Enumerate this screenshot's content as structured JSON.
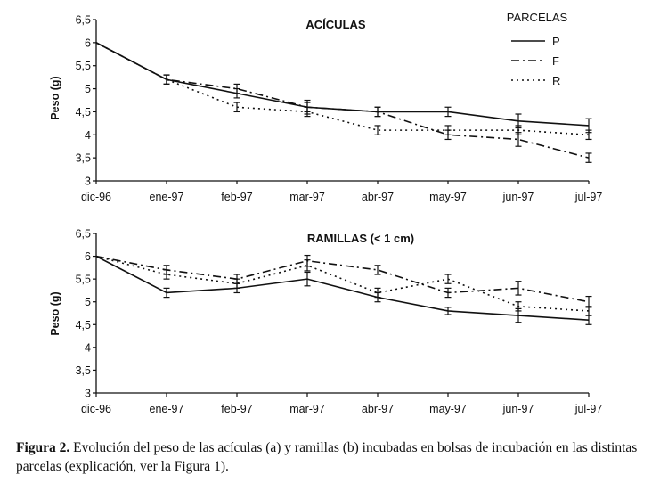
{
  "chart_data": [
    {
      "type": "line",
      "title": "ACÍCULAS",
      "ylabel": "Peso (g)",
      "xlabel": "",
      "categories": [
        "dic-96",
        "ene-97",
        "feb-97",
        "mar-97",
        "abr-97",
        "may-97",
        "jun-97",
        "jul-97"
      ],
      "ylim": [
        3,
        6.5
      ],
      "yticks": [
        "3",
        "3,5",
        "4",
        "4,5",
        "5",
        "5,5",
        "6",
        "6,5"
      ],
      "legend_title": "PARCELAS",
      "legend_position": "top-right",
      "series": [
        {
          "name": "P",
          "dash": "solid",
          "values": [
            6.0,
            5.2,
            4.9,
            4.6,
            4.5,
            4.5,
            4.3,
            4.2
          ],
          "errors": [
            0,
            0.1,
            0.1,
            0.15,
            0.1,
            0.1,
            0.15,
            0.15
          ]
        },
        {
          "name": "F",
          "dash": "dashdot",
          "values": [
            6.0,
            5.2,
            5.0,
            4.6,
            4.5,
            4.0,
            3.9,
            3.5
          ],
          "errors": [
            0,
            0.1,
            0.1,
            0.1,
            0.1,
            0.1,
            0.15,
            0.1
          ]
        },
        {
          "name": "R",
          "dash": "dotted",
          "values": [
            6.0,
            5.2,
            4.6,
            4.5,
            4.1,
            4.1,
            4.1,
            4.0
          ],
          "errors": [
            0,
            0.1,
            0.1,
            0.1,
            0.1,
            0.1,
            0.1,
            0.1
          ]
        }
      ]
    },
    {
      "type": "line",
      "title": "RAMILLAS (< 1 cm)",
      "ylabel": "Peso (g)",
      "xlabel": "",
      "categories": [
        "dic-96",
        "ene-97",
        "feb-97",
        "mar-97",
        "abr-97",
        "may-97",
        "jun-97",
        "jul-97"
      ],
      "ylim": [
        3,
        6.5
      ],
      "yticks": [
        "3",
        "3,5",
        "4",
        "4,5",
        "5",
        "5,5",
        "6",
        "6,5"
      ],
      "series": [
        {
          "name": "P",
          "dash": "solid",
          "values": [
            6.0,
            5.2,
            5.3,
            5.5,
            5.1,
            4.8,
            4.7,
            4.6
          ],
          "errors": [
            0,
            0.1,
            0.1,
            0.15,
            0.1,
            0.08,
            0.15,
            0.1
          ]
        },
        {
          "name": "F",
          "dash": "dashdot",
          "values": [
            6.0,
            5.7,
            5.5,
            5.9,
            5.7,
            5.2,
            5.3,
            5.0
          ],
          "errors": [
            0,
            0.1,
            0.1,
            0.12,
            0.1,
            0.1,
            0.15,
            0.12
          ]
        },
        {
          "name": "R",
          "dash": "dotted",
          "values": [
            6.0,
            5.6,
            5.4,
            5.8,
            5.2,
            5.5,
            4.9,
            4.8
          ],
          "errors": [
            0,
            0.1,
            0.1,
            0.12,
            0.1,
            0.1,
            0.1,
            0.1
          ]
        }
      ]
    }
  ],
  "caption": {
    "label": "Figura 2.",
    "text": " Evolución del peso de las acículas (a) y ramillas (b) incubadas en bolsas de incubación en las distintas parcelas (explicación, ver la Figura 1)."
  }
}
